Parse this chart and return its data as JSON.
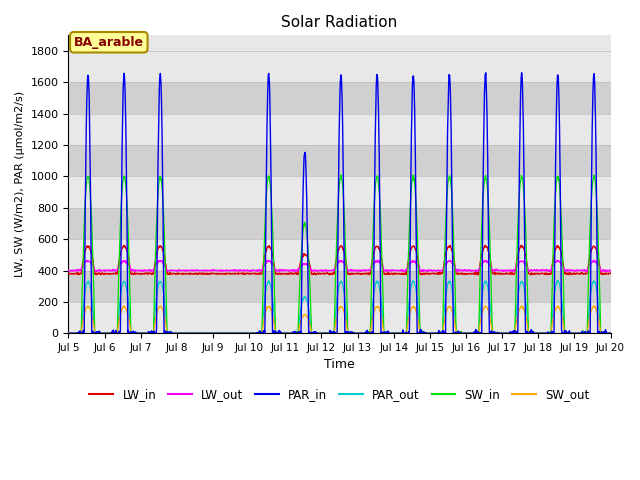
{
  "title": "Solar Radiation",
  "xlabel": "Time",
  "ylabel": "LW, SW (W/m2), PAR (μmol/m2/s)",
  "annotation": "BA_arable",
  "ylim": [
    0,
    1900
  ],
  "yticks": [
    0,
    200,
    400,
    600,
    800,
    1000,
    1200,
    1400,
    1600,
    1800
  ],
  "x_start_day": 5,
  "x_end_day": 20,
  "x_tick_days": [
    5,
    6,
    7,
    8,
    9,
    10,
    11,
    12,
    13,
    14,
    15,
    16,
    17,
    18,
    19,
    20
  ],
  "x_tick_labels": [
    "Jul 5",
    "Jul 6",
    "Jul 7",
    "Jul 8",
    "Jul 9",
    "Jul 10",
    "Jul 11",
    "Jul 12",
    "Jul 13",
    "Jul 14",
    "Jul 15",
    "Jul 16",
    "Jul 17",
    "Jul 18",
    "Jul 19",
    "Jul 20"
  ],
  "colors": {
    "LW_in": "#dd0000",
    "LW_out": "#ff00ff",
    "PAR_in": "#0000ee",
    "PAR_out": "#00cccc",
    "SW_in": "#00dd00",
    "SW_out": "#ffaa00"
  },
  "background_color": "#ffffff",
  "plot_bg_light": "#e8e8e8",
  "plot_bg_dark": "#d0d0d0",
  "grid_color": "#bbbbbb",
  "annotation_bg": "#ffff99",
  "annotation_border": "#aa8800",
  "annotation_text_color": "#880000",
  "figsize": [
    6.4,
    4.8
  ],
  "dpi": 100
}
